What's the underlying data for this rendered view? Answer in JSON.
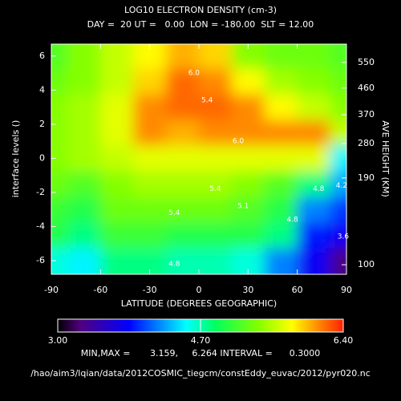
{
  "chart_data": {
    "type": "contour",
    "title": "LOG10 ELECTRON DENSITY (cm-3)",
    "subtitle": "DAY =  20 UT =   0.00  LON = -180.00  SLT = 12.00",
    "x_label": "LATITUDE (DEGREES GEOGRAPHIC)",
    "y_label": "interface levels ()",
    "y2_label": "AVE HEIGHT (KM)",
    "xlim": [
      -90,
      90
    ],
    "xticks": [
      -90,
      -60,
      -30,
      0,
      30,
      60,
      90
    ],
    "ylim": [
      -6.8,
      6.7
    ],
    "yticks": [
      -6,
      -4,
      -2,
      0,
      2,
      4,
      6
    ],
    "height_ticks": [
      {
        "value": 5.62,
        "label": "550"
      },
      {
        "value": 4.12,
        "label": "460"
      },
      {
        "value": 2.56,
        "label": "370"
      },
      {
        "value": 0.87,
        "label": "280"
      },
      {
        "value": -1.15,
        "label": "190"
      },
      {
        "value": -6.24,
        "label": "100"
      }
    ],
    "x": [
      -90,
      -70,
      -50,
      -30,
      -10,
      10,
      30,
      50,
      70,
      90
    ],
    "y": [
      6,
      4.5,
      3,
      1.5,
      0,
      -1.5,
      -3,
      -4.5,
      -6
    ],
    "z": [
      [
        5.2,
        5.4,
        5.6,
        5.8,
        6.0,
        5.9,
        5.4,
        5.3,
        5.3,
        5.2
      ],
      [
        5.3,
        5.4,
        5.6,
        5.9,
        6.2,
        6.1,
        5.8,
        5.5,
        5.4,
        5.3
      ],
      [
        5.4,
        5.5,
        5.7,
        6.1,
        6.2,
        6.2,
        6.1,
        5.8,
        5.6,
        5.4
      ],
      [
        5.4,
        5.5,
        5.7,
        6.1,
        6.0,
        6.1,
        6.1,
        6.1,
        6.1,
        5.6
      ],
      [
        5.4,
        5.5,
        5.6,
        5.7,
        5.7,
        5.7,
        5.7,
        5.7,
        5.7,
        4.5
      ],
      [
        5.3,
        5.2,
        5.4,
        5.5,
        5.5,
        5.5,
        5.4,
        5.2,
        4.8,
        4.3
      ],
      [
        5.1,
        5.0,
        5.3,
        5.3,
        5.3,
        5.3,
        5.2,
        5.0,
        4.2,
        4.0
      ],
      [
        5.0,
        4.8,
        5.1,
        5.1,
        5.0,
        5.0,
        5.0,
        4.8,
        3.9,
        3.8
      ],
      [
        4.6,
        4.5,
        4.8,
        4.8,
        4.7,
        4.7,
        4.6,
        4.2,
        3.8,
        3.3
      ]
    ],
    "zlim": [
      3,
      6.4
    ],
    "colorbar_ticks": [
      {
        "value": 3,
        "label": "3.00"
      },
      {
        "value": 4.7,
        "label": "4.70"
      },
      {
        "value": 6.4,
        "label": "6.40"
      }
    ],
    "contour_labels": [
      "5.4",
      "5.4",
      "6.0",
      "6.0",
      "5.4",
      "5.1",
      "4.8",
      "4.8",
      "4.8",
      "4.2",
      "3.6"
    ],
    "stats": "MIN,MAX =       3.159,     6.264 INTERVAL =      0.3000",
    "footer": "/hao/aim3/lqian/data/2012COSMIC_tiegcm/constEddy_euvac/2012/pyr020.nc"
  }
}
